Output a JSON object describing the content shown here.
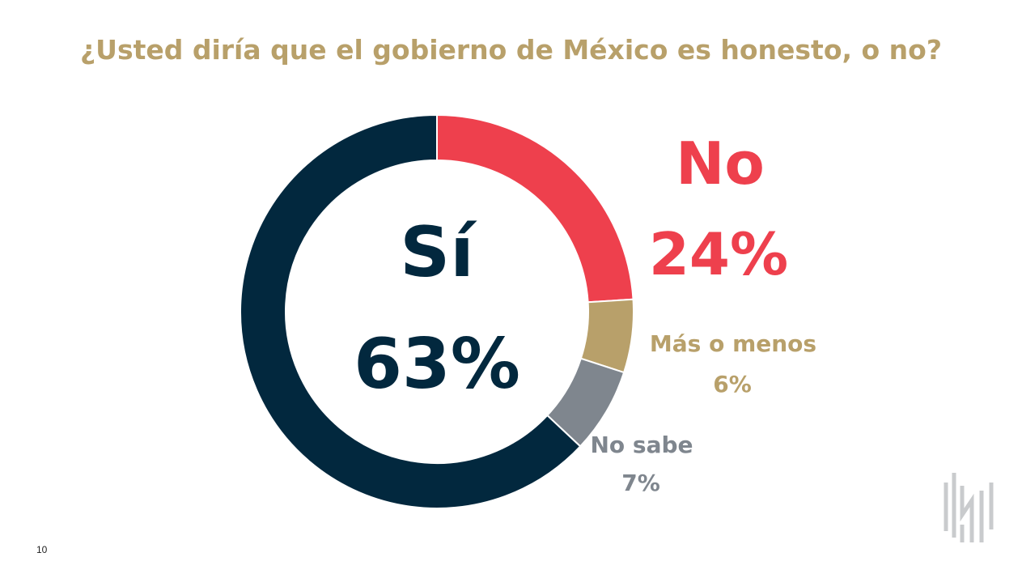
{
  "page_number": "10",
  "colors": {
    "si": "#02283E",
    "no": "#EE404D",
    "mas_o_menos": "#B8A06A",
    "no_sabe": "#7F868E",
    "title": "#B8A06A",
    "logo": "#C9CBCD"
  },
  "logo_icon": "company-logo-icon",
  "chart_data": {
    "type": "pie",
    "title": "¿Usted diría que el gobierno de México es honesto, o no?",
    "categories": [
      "No",
      "Más o menos",
      "No sabe",
      "Sí"
    ],
    "values": [
      24,
      6,
      7,
      63
    ],
    "labels": {
      "si": {
        "name": "Sí",
        "value": "63%"
      },
      "no": {
        "name": "No",
        "value": "24%"
      },
      "mas_o_menos": {
        "name": "Más o menos",
        "value": "6%"
      },
      "no_sabe": {
        "name": "No sabe",
        "value": "7%"
      }
    }
  }
}
